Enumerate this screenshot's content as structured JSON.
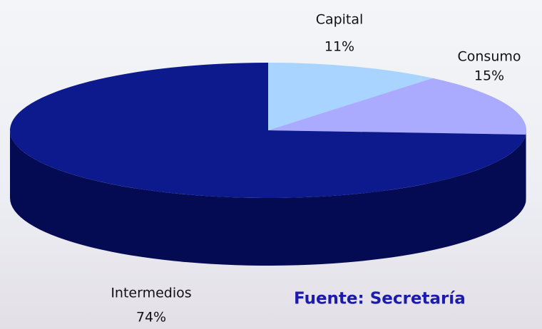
{
  "chart_data": {
    "type": "pie",
    "categories": [
      "Capital",
      "Consumo",
      "Intermedios"
    ],
    "values": [
      11,
      15,
      74
    ],
    "value_labels": [
      "11%",
      "15%",
      "74%"
    ],
    "colors": [
      "#a8d4ff",
      "#aaaaff",
      "#0c1a8e"
    ],
    "side_colors": [
      "#86aee0",
      "#7d7dd0",
      "#050b52"
    ],
    "annotation": "Fuente: Secretaría"
  }
}
